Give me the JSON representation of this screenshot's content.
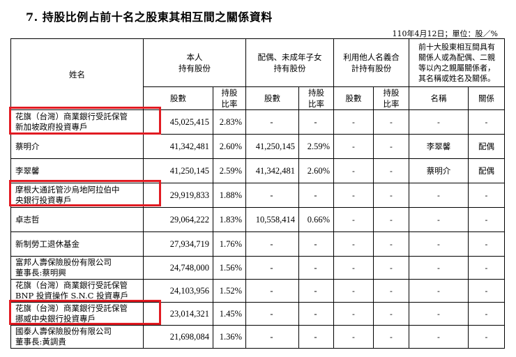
{
  "title": "7. 持股比例占前十名之股東其相互間之關係資料",
  "date_note": "110年4月12日；單位：股／%",
  "headers": {
    "name": "姓名",
    "own_line1": "本人",
    "own_line2": "持有股份",
    "spouse_line1": "配偶、未成年子女",
    "spouse_line2": "持有股份",
    "nominee_line1": "利用他人名義合",
    "nominee_line2": "計持有股份",
    "related_line1": "前十大股東相互間具有",
    "related_line2": "關係人或為配偶、二親",
    "related_line3": "等以內之親屬關係者，",
    "related_line4": "其名稱或姓名及關係。",
    "shares": "股數",
    "ratio_line1": "持股",
    "ratio_line2": "比率",
    "rel_name": "名稱",
    "rel_relation": "關係"
  },
  "rows": [
    {
      "name1": "花旗（台灣）商業銀行受託保管",
      "name2": "新加坡政府投資專戶",
      "shares": "45,025,415",
      "ratio": "2.83%",
      "sp_shares": "-",
      "sp_ratio": "-",
      "nm_shares": "-",
      "nm_ratio": "-",
      "rel_name": "-",
      "rel_relation": "-"
    },
    {
      "name1": "蔡明介",
      "name2": "",
      "shares": "41,342,481",
      "ratio": "2.60%",
      "sp_shares": "41,250,145",
      "sp_ratio": "2.59%",
      "nm_shares": "-",
      "nm_ratio": "-",
      "rel_name": "李翠馨",
      "rel_relation": "配偶"
    },
    {
      "name1": "李翠馨",
      "name2": "",
      "shares": "41,250,145",
      "ratio": "2.59%",
      "sp_shares": "41,342,481",
      "sp_ratio": "2.60%",
      "nm_shares": "-",
      "nm_ratio": "-",
      "rel_name": "蔡明介",
      "rel_relation": "配偶"
    },
    {
      "name1": "摩根大通託管沙烏地阿拉伯中",
      "name2": "央銀行投資專戶",
      "shares": "29,919,833",
      "ratio": "1.88%",
      "sp_shares": "-",
      "sp_ratio": "-",
      "nm_shares": "-",
      "nm_ratio": "-",
      "rel_name": "-",
      "rel_relation": "-"
    },
    {
      "name1": "卓志哲",
      "name2": "",
      "shares": "29,064,222",
      "ratio": "1.83%",
      "sp_shares": "10,558,414",
      "sp_ratio": "0.66%",
      "nm_shares": "-",
      "nm_ratio": "-",
      "rel_name": "-",
      "rel_relation": "-"
    },
    {
      "name1": "新制勞工退休基金",
      "name2": "",
      "shares": "27,934,719",
      "ratio": "1.76%",
      "sp_shares": "-",
      "sp_ratio": "-",
      "nm_shares": "-",
      "nm_ratio": "-",
      "rel_name": "-",
      "rel_relation": "-"
    },
    {
      "name1": "富邦人壽保險股份有限公司",
      "name2": "董事長:蔡明興",
      "shares": "24,748,000",
      "ratio": "1.56%",
      "sp_shares": "-",
      "sp_ratio": "-",
      "nm_shares": "-",
      "nm_ratio": "-",
      "rel_name": "-",
      "rel_relation": "-"
    },
    {
      "name1": "花旗（台灣）商業銀行受託保管",
      "name2": "BNP 投資操作 S.N.C 投資專戶",
      "shares": "24,103,956",
      "ratio": "1.52%",
      "sp_shares": "-",
      "sp_ratio": "-",
      "nm_shares": "-",
      "nm_ratio": "-",
      "rel_name": "-",
      "rel_relation": "-"
    },
    {
      "name1": "花旗（台灣）商業銀行受託保管",
      "name2": "挪威中央銀行投資專戶",
      "shares": "23,014,321",
      "ratio": "1.45%",
      "sp_shares": "-",
      "sp_ratio": "-",
      "nm_shares": "-",
      "nm_ratio": "-",
      "rel_name": "-",
      "rel_relation": "-"
    },
    {
      "name1": "國泰人壽保險股份有限公司",
      "name2": "董事長:黃調貴",
      "shares": "21,698,084",
      "ratio": "1.36%",
      "sp_shares": "-",
      "sp_ratio": "-",
      "nm_shares": "-",
      "nm_ratio": "-",
      "rel_name": "-",
      "rel_relation": "-"
    }
  ],
  "highlight_color": "#e11b22"
}
